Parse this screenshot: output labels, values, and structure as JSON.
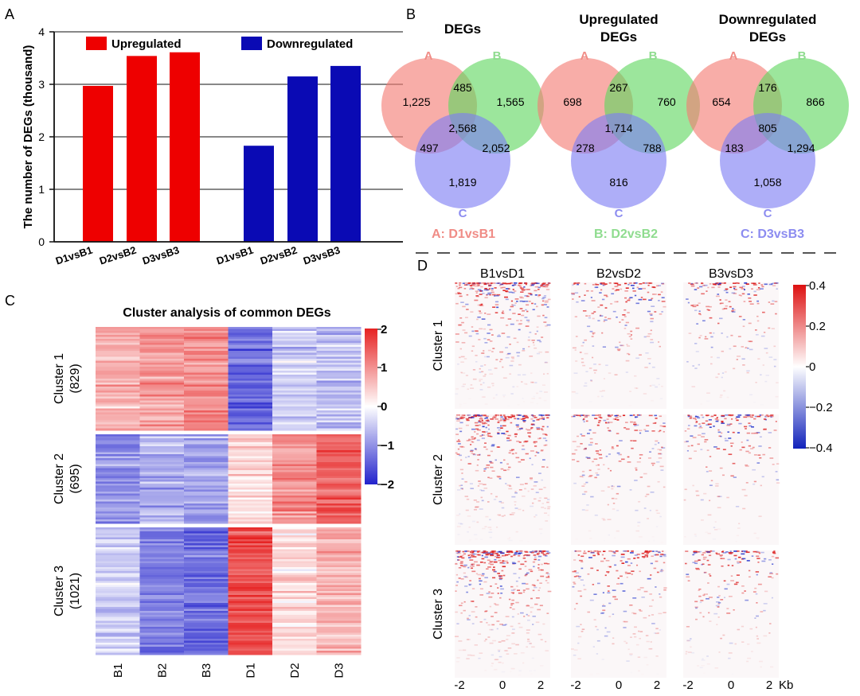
{
  "panel_labels": {
    "a": "A",
    "b": "B",
    "c": "C",
    "d": "D"
  },
  "colors": {
    "up": "#ee0000",
    "down": "#0a0ab4",
    "venn_a": "#f47a72",
    "venn_b": "#5fd75f",
    "venn_c": "#7c7cf4",
    "venn_label_a": "#f08c86",
    "venn_label_b": "#8fdc8f",
    "venn_label_c": "#8c8cf0",
    "heat_high": "#e62222",
    "heat_low": "#2222cc",
    "track_pos": "#dd2222",
    "track_neg": "#2233cc"
  },
  "chart_data": [
    {
      "type": "bar",
      "panel": "A",
      "ylabel": "The number of DEGs (thousand)",
      "ylim": [
        0,
        4
      ],
      "yticks": [
        "0",
        "1",
        "2",
        "3",
        "4"
      ],
      "grid": true,
      "legend": "top",
      "series": [
        {
          "name": "Upregulated",
          "categories": [
            "D1vsB1",
            "D2vsB2",
            "D3vsB3"
          ],
          "values": [
            2.97,
            3.54,
            3.61
          ]
        },
        {
          "name": "Downregulated",
          "categories": [
            "D1vsB1",
            "D2vsB2",
            "D3vsB3"
          ],
          "values": [
            1.83,
            3.15,
            3.35
          ]
        }
      ]
    },
    {
      "type": "venn",
      "panel": "B",
      "sets": [
        "A",
        "B",
        "C"
      ],
      "set_legend": [
        "A: D1vsB1",
        "B: D2vsB2",
        "C: D3vsB3"
      ],
      "diagrams": [
        {
          "title": [
            "DEGs"
          ],
          "regions": {
            "A": "1,225",
            "B": "1,565",
            "C": "1,819",
            "AB": "485",
            "AC": "497",
            "BC": "2,052",
            "ABC": "2,568"
          }
        },
        {
          "title": [
            "Upregulated",
            "DEGs"
          ],
          "regions": {
            "A": "698",
            "B": "760",
            "C": "816",
            "AB": "267",
            "AC": "278",
            "BC": "788",
            "ABC": "1,714"
          }
        },
        {
          "title": [
            "Downregulated",
            "DEGs"
          ],
          "regions": {
            "A": "654",
            "B": "866",
            "C": "1,058",
            "AB": "176",
            "AC": "183",
            "BC": "1,294",
            "ABC": "805"
          }
        }
      ]
    },
    {
      "type": "heatmap",
      "panel": "C",
      "title": "Cluster analysis of common DEGs",
      "columns": [
        "B1",
        "B2",
        "B3",
        "D1",
        "D2",
        "D3"
      ],
      "clusters": [
        {
          "label": "Cluster 1",
          "count": "(829)",
          "rows": 829,
          "means": [
            0.7,
            0.9,
            1.0,
            -1.3,
            -0.45,
            -0.55
          ]
        },
        {
          "label": "Cluster 2",
          "count": "(695)",
          "rows": 695,
          "means": [
            -1.0,
            -0.7,
            -0.8,
            0.3,
            1.0,
            1.4
          ]
        },
        {
          "label": "Cluster 3",
          "count": "(1021)",
          "rows": 1021,
          "means": [
            -0.5,
            -1.2,
            -1.3,
            1.6,
            0.3,
            0.7
          ]
        }
      ],
      "colorbar": {
        "range": [
          -2,
          2
        ],
        "ticks": [
          "2",
          "1",
          "0",
          "−1",
          "−2"
        ]
      }
    },
    {
      "type": "heatmap",
      "panel": "D",
      "columns": [
        "B1vsD1",
        "B2vsD2",
        "B3vsD3"
      ],
      "rows": [
        "Cluster 1",
        "Cluster 2",
        "Cluster 3"
      ],
      "x_ticks": [
        "-2",
        "0",
        "2"
      ],
      "x_unit": "Kb",
      "colorbar": {
        "range": [
          -0.4,
          0.4
        ],
        "ticks": [
          "0.4",
          "0.2",
          "0",
          "−0.2",
          "−0.4"
        ]
      }
    }
  ]
}
